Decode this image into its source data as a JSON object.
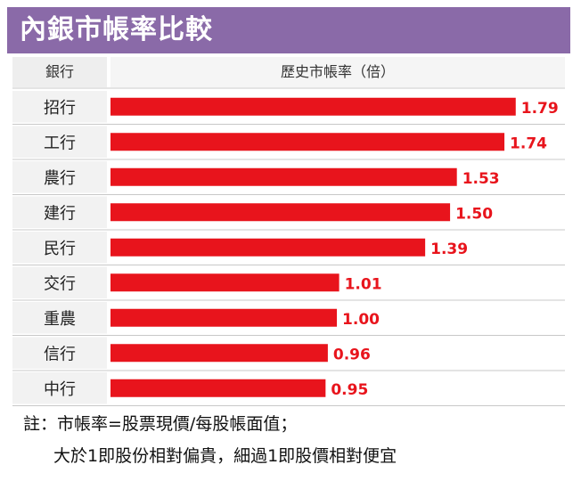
{
  "title": "內銀市帳率比較",
  "header": {
    "bank_label": "銀行",
    "ratio_label": "歷史市帳率（倍）"
  },
  "chart_data": {
    "type": "bar",
    "orientation": "horizontal",
    "categories": [
      "招行",
      "工行",
      "農行",
      "建行",
      "民行",
      "交行",
      "重農",
      "信行",
      "中行"
    ],
    "values": [
      1.79,
      1.74,
      1.53,
      1.5,
      1.39,
      1.01,
      1.0,
      0.96,
      0.95
    ],
    "value_labels": [
      "1.79",
      "1.74",
      "1.53",
      "1.50",
      "1.39",
      "1.01",
      "1.00",
      "0.96",
      "0.95"
    ],
    "xlim": [
      0,
      1.85
    ],
    "bar_color": "#e8141c",
    "grid": false
  },
  "notes": {
    "line1": "註：市帳率=股票現價/每股帳面值；",
    "line2": "大於1即股份相對偏貴，細過1即股價相對便宜"
  },
  "colors": {
    "banner": "#8a6aa8",
    "bar": "#e8141c",
    "value_label": "#e8141c"
  }
}
